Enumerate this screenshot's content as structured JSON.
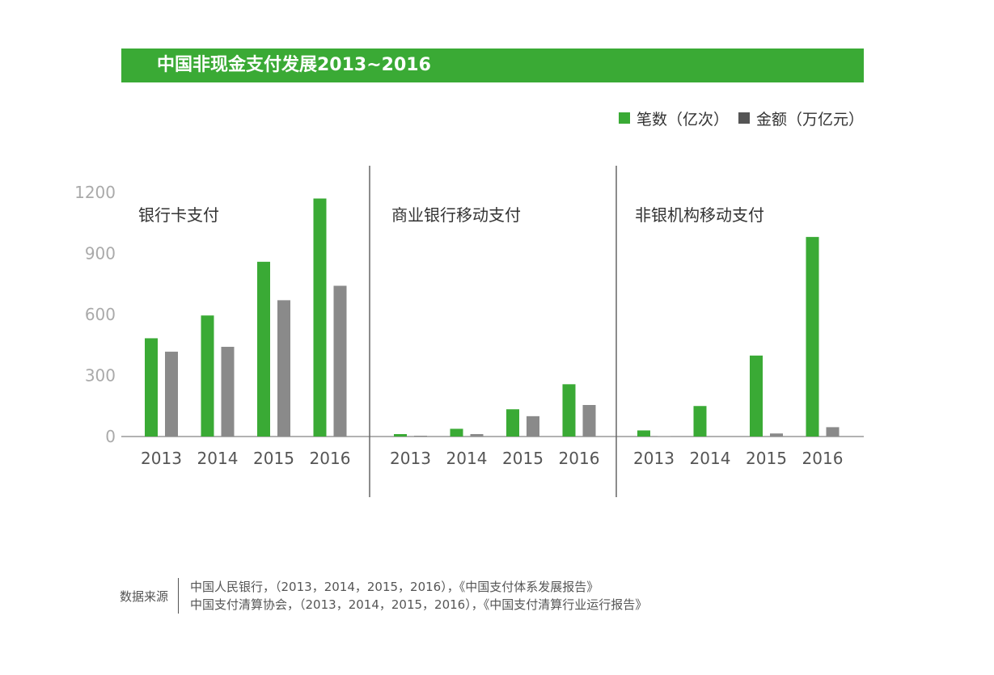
{
  "title": "中国非现金支付发展2013~2016",
  "legend": [
    {
      "label": "笔数（亿次）",
      "color": "#3aaa35"
    },
    {
      "label": "金额（万亿元）",
      "color": "#555555"
    }
  ],
  "colors": {
    "accent": "#3aaa35",
    "amount": "#8a8a8a",
    "axis_text": "#aaaaaa",
    "text": "#333333"
  },
  "chart_data": {
    "type": "bar",
    "ylim": [
      0,
      1200
    ],
    "yticks": [
      0,
      300,
      600,
      900,
      1200
    ],
    "categories": [
      "2013",
      "2014",
      "2015",
      "2016"
    ],
    "panels": [
      {
        "title": "银行卡支付",
        "series": [
          {
            "name": "笔数（亿次）",
            "values": [
              483,
              595,
              859,
              1170
            ]
          },
          {
            "name": "金额（万亿元）",
            "values": [
              417,
              441,
              670,
              741
            ]
          }
        ]
      },
      {
        "title": "商业银行移动支付",
        "series": [
          {
            "name": "笔数（亿次）",
            "values": [
              12,
              38,
              134,
              257
            ]
          },
          {
            "name": "金额（万亿元）",
            "values": [
              4,
              12,
              100,
              155
            ]
          }
        ]
      },
      {
        "title": "非银机构移动支付",
        "series": [
          {
            "name": "笔数（亿次）",
            "values": [
              30,
              150,
              398,
              981
            ]
          },
          {
            "name": "金额（万亿元）",
            "values": [
              1,
              0,
              15,
              46
            ]
          }
        ]
      }
    ]
  },
  "source": {
    "label": "数据来源",
    "lines": [
      "中国人民银行，（2013，2014，2015，2016），《中国支付体系发展报告》",
      "中国支付清算协会，（2013，2014，2015，2016），《中国支付清算行业运行报告》"
    ]
  }
}
